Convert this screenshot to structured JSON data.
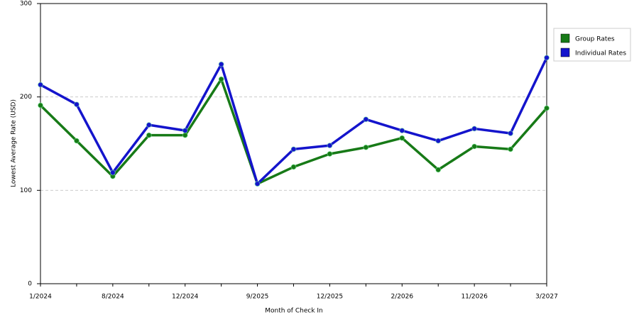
{
  "chart_data": {
    "type": "line",
    "x_label": "Month of Check In",
    "y_label": "Lowest Average Rate (USD)",
    "categories": [
      "1/2024",
      null,
      "8/2024",
      null,
      "12/2024",
      null,
      "9/2025",
      null,
      "12/2025",
      null,
      "2/2026",
      null,
      "11/2026",
      null,
      "3/2027"
    ],
    "series": [
      {
        "name": "Group Rates",
        "color": "#177a17",
        "values": [
          191,
          153,
          115,
          159,
          159,
          219,
          107,
          125,
          139,
          146,
          156,
          122,
          147,
          144,
          188
        ]
      },
      {
        "name": "Individual Rates",
        "color": "#1414cc",
        "values": [
          213,
          192,
          119,
          170,
          164,
          235,
          107,
          144,
          148,
          176,
          164,
          153,
          166,
          161,
          242
        ]
      }
    ],
    "ylim": [
      0,
      300
    ],
    "yticks": [
      0,
      100,
      200,
      300
    ],
    "grid": true,
    "legend": "right"
  }
}
